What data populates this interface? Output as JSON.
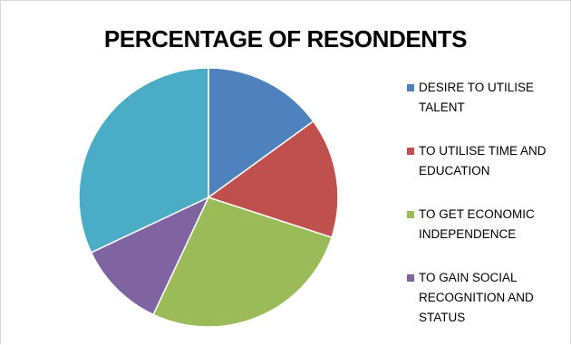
{
  "chart_data": {
    "type": "pie",
    "title": "PERCENTAGE OF RESONDENTS",
    "categories": [
      "DESIRE TO UTILISE TALENT",
      "TO UTILISE TIME AND EDUCATION",
      "TO GET ECONOMIC INDEPENDENCE",
      "TO GAIN SOCIAL RECOGNITION AND STATUS",
      ""
    ],
    "values": [
      15,
      15,
      27,
      11,
      32
    ],
    "colors": [
      "#4f81bd",
      "#c0504d",
      "#9bbb59",
      "#8064a2",
      "#4bacc6"
    ],
    "legend_position": "right",
    "legend": [
      {
        "label": "DESIRE TO UTILISE TALENT",
        "color": "#4f81bd"
      },
      {
        "label": "TO UTILISE TIME AND EDUCATION",
        "color": "#c0504d"
      },
      {
        "label": "TO GET ECONOMIC INDEPENDENCE",
        "color": "#9bbb59"
      },
      {
        "label": "TO GAIN SOCIAL RECOGNITION AND STATUS",
        "color": "#8064a2"
      }
    ]
  }
}
